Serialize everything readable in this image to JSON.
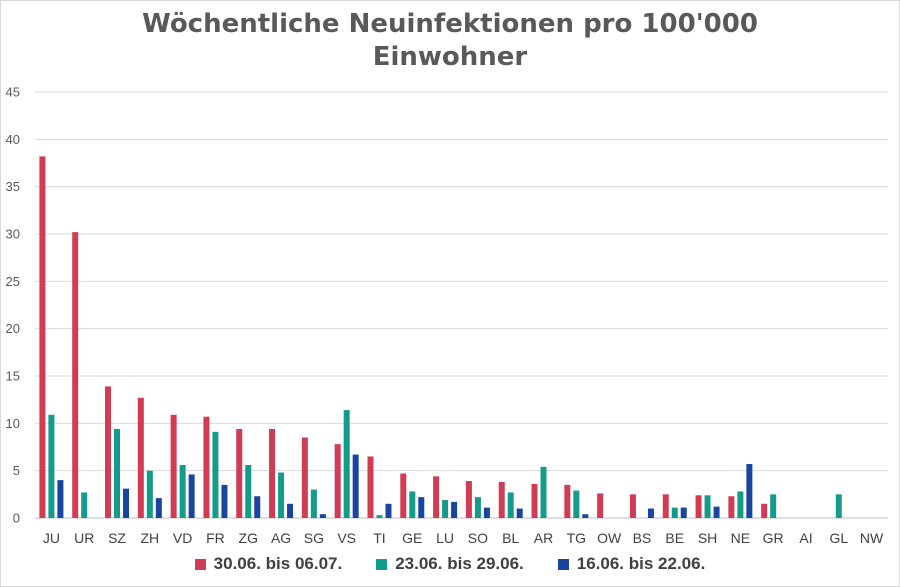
{
  "chart_data": {
    "type": "bar",
    "title_line1": "Wöchentliche Neuinfektionen pro 100'000",
    "title_line2": "Einwohner",
    "xlabel": "",
    "ylabel": "",
    "ylim": [
      0,
      45
    ],
    "yticks": [
      0,
      5,
      10,
      15,
      20,
      25,
      30,
      35,
      40,
      45
    ],
    "grid": true,
    "legend_position": "bottom",
    "categories": [
      "JU",
      "UR",
      "SZ",
      "ZH",
      "VD",
      "FR",
      "ZG",
      "AG",
      "SG",
      "VS",
      "TI",
      "GE",
      "LU",
      "SO",
      "BL",
      "AR",
      "TG",
      "OW",
      "BS",
      "BE",
      "SH",
      "NE",
      "GR",
      "AI",
      "GL",
      "NW"
    ],
    "series": [
      {
        "name": "30.06. bis 06.07.",
        "color": "#d13b53",
        "values": [
          38.2,
          30.2,
          13.9,
          12.7,
          10.9,
          10.7,
          9.4,
          9.4,
          8.5,
          7.8,
          6.5,
          4.7,
          4.4,
          3.9,
          3.8,
          3.6,
          3.5,
          2.6,
          2.5,
          2.5,
          2.4,
          2.3,
          1.5,
          0,
          0,
          0
        ]
      },
      {
        "name": "23.06. bis 29.06.",
        "color": "#139c8a",
        "values": [
          10.9,
          2.7,
          9.4,
          5.0,
          5.6,
          9.1,
          5.6,
          4.8,
          3.0,
          11.4,
          0.3,
          2.8,
          1.9,
          2.2,
          2.7,
          5.4,
          2.9,
          0,
          0,
          1.1,
          2.4,
          2.8,
          2.5,
          0,
          2.5,
          0
        ]
      },
      {
        "name": "16.06. bis 22.06.",
        "color": "#1845a0",
        "values": [
          4.0,
          0,
          3.1,
          2.1,
          4.6,
          3.5,
          2.3,
          1.5,
          0.4,
          6.7,
          1.5,
          2.2,
          1.7,
          1.1,
          1.0,
          0,
          0.4,
          0,
          1.0,
          1.1,
          1.2,
          5.7,
          0,
          0,
          0,
          0
        ]
      }
    ]
  }
}
